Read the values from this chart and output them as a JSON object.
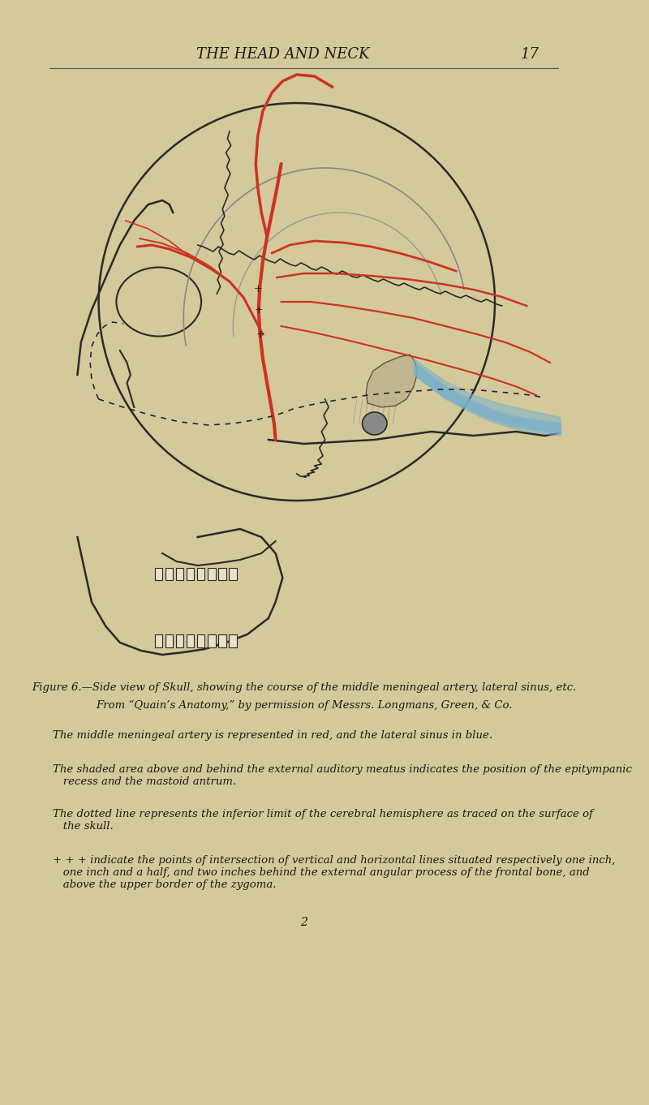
{
  "bg_color": "#d4c99a",
  "page_bg": "#cfc490",
  "title_text": "THE HEAD AND NECK",
  "title_page_num": "17",
  "title_fontsize": 13,
  "title_style": "italic",
  "caption_line1": "Figure 6.—Side view of Skull, showing the course of the middle meningeal artery, lateral sinus, etc.",
  "caption_line2": "From “Quain’s Anatomy,” by permission of Messrs. Longmans, Green, & Co.",
  "caption_fontsize": 9.5,
  "body_lines": [
    "The middle meningeal artery is represented in red, and the lateral sinus in blue.",
    "The shaded area above and behind the external auditory meatus indicates the position of the epitympanic\n   recess and the mastoid antrum.",
    "The dotted line represents the inferior limit of the cerebral hemisphere as traced on the surface of\n   the skull.",
    "+ + + indicate the points of intersection of vertical and horizontal lines situated respectively one inch,\n   one inch and a half, and two inches behind the external angular process of the frontal bone, and\n   above the upper border of the zygoma."
  ],
  "body_fontsize": 9.5,
  "footer_num": "2",
  "artery_color": "#cc3322",
  "sinus_color": "#7ab0cc",
  "skull_outline_color": "#2a2a2a",
  "fig_width": 8.0,
  "fig_height": 13.62
}
